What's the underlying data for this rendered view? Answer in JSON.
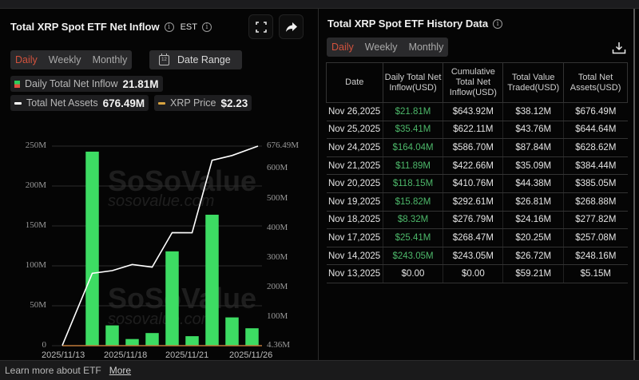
{
  "left_panel": {
    "title": "Total XRP Spot ETF Net Inflow",
    "timezone": "EST",
    "period_tabs": [
      "Daily",
      "Weekly",
      "Monthly"
    ],
    "active_tab": "Daily",
    "date_range_label": "Date Range",
    "calendar_day": "12",
    "legend": {
      "inflow_label": "Daily Total Net Inflow",
      "inflow_value": "21.81M",
      "assets_label": "Total Net Assets",
      "assets_value": "676.49M",
      "price_label": "XRP Price",
      "price_value": "$2.23"
    },
    "watermark": {
      "brand": "SoSoValue",
      "url": "sosovalue.com"
    }
  },
  "chart_data": {
    "type": "bar",
    "title": "Total XRP Spot ETF Net Inflow",
    "categories": [
      "2025/11/13",
      "2025/11/14",
      "2025/11/17",
      "2025/11/18",
      "2025/11/19",
      "2025/11/20",
      "2025/11/21",
      "2025/11/24",
      "2025/11/25",
      "2025/11/26"
    ],
    "x_tick_labels": [
      "2025/11/13",
      "2025/11/18",
      "2025/11/21",
      "2025/11/26"
    ],
    "series": [
      {
        "name": "Daily Total Net Inflow",
        "type": "bar",
        "axis": "left",
        "color": "#3ddc63",
        "values": [
          0,
          243.05,
          25.41,
          8.32,
          15.82,
          118.15,
          11.89,
          164.04,
          35.41,
          21.81
        ]
      },
      {
        "name": "Total Net Assets",
        "type": "line",
        "axis": "right",
        "color": "#ffffff",
        "values": [
          5.15,
          248.16,
          257.08,
          277.82,
          268.88,
          385.05,
          384.44,
          628.62,
          644.64,
          676.49
        ]
      }
    ],
    "y_left": {
      "ticks": [
        "0",
        "50M",
        "100M",
        "150M",
        "200M",
        "250M"
      ],
      "range": [
        0,
        250
      ]
    },
    "y_right": {
      "ticks": [
        "4.36M",
        "100M",
        "200M",
        "300M",
        "400M",
        "500M",
        "600M",
        "676.49M"
      ],
      "range": [
        4.36,
        676.49
      ]
    },
    "xlabel": "",
    "ylabel": "",
    "grid": true,
    "units": "USD millions"
  },
  "right_panel": {
    "title": "Total XRP Spot ETF History Data",
    "period_tabs": [
      "Daily",
      "Weekly",
      "Monthly"
    ],
    "active_tab": "Daily",
    "columns": [
      "Date",
      "Daily Total Net Inflow(USD)",
      "Cumulative Total Net Inflow(USD)",
      "Total Value Traded(USD)",
      "Total Net Assets(USD)"
    ],
    "rows": [
      [
        "Nov 26,2025",
        "$21.81M",
        "$643.92M",
        "$38.12M",
        "$676.49M"
      ],
      [
        "Nov 25,2025",
        "$35.41M",
        "$622.11M",
        "$43.76M",
        "$644.64M"
      ],
      [
        "Nov 24,2025",
        "$164.04M",
        "$586.70M",
        "$87.84M",
        "$628.62M"
      ],
      [
        "Nov 21,2025",
        "$11.89M",
        "$422.66M",
        "$35.09M",
        "$384.44M"
      ],
      [
        "Nov 20,2025",
        "$118.15M",
        "$410.76M",
        "$44.38M",
        "$385.05M"
      ],
      [
        "Nov 19,2025",
        "$15.82M",
        "$292.61M",
        "$26.81M",
        "$268.88M"
      ],
      [
        "Nov 18,2025",
        "$8.32M",
        "$276.79M",
        "$24.16M",
        "$277.82M"
      ],
      [
        "Nov 17,2025",
        "$25.41M",
        "$268.47M",
        "$20.25M",
        "$257.08M"
      ],
      [
        "Nov 14,2025",
        "$243.05M",
        "$243.05M",
        "$26.72M",
        "$248.16M"
      ],
      [
        "Nov 13,2025",
        "$0.00",
        "$0.00",
        "$59.21M",
        "$5.15M"
      ]
    ],
    "positive_color": "#4db86a"
  },
  "footer": {
    "text": "Learn more about ETF",
    "link": "More"
  },
  "colors": {
    "accent": "#d2523d",
    "bar": "#3ddc63",
    "line": "#ffffff",
    "price": "#d9a441",
    "background": "#050505"
  }
}
